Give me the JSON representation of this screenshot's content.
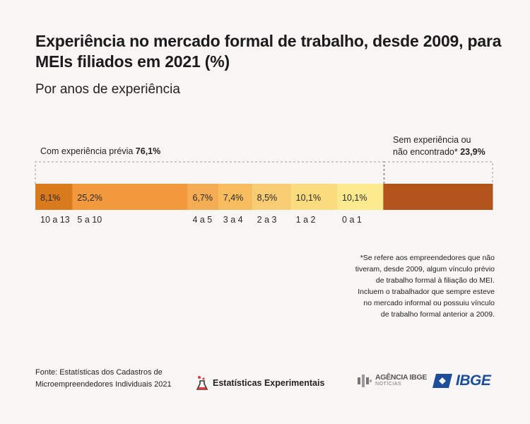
{
  "title": "Experiência no mercado formal de trabalho, desde 2009, para MEIs filiados em 2021 (%)",
  "subtitle": "Por anos de experiência",
  "header_left": {
    "label": "Com experiência prévia",
    "value": "76,1%"
  },
  "header_right": {
    "line1": "Sem experiência ou",
    "line2": "não encontrado*",
    "value": "23,9%"
  },
  "footnote": [
    "*Se refere aos empreendedores que não",
    "tiveram, desde 2009, algum vínculo prévio",
    "de trabalho formal à filiação do MEI.",
    "Incluem o trabalhador que sempre esteve",
    "no mercado informal ou possuiu vínculo",
    "de trabalho formal anterior a 2009."
  ],
  "source": {
    "line1": "Fonte: Estatísticas dos Cadastros de",
    "line2": "Microempreendedores Individuais 2021"
  },
  "logos": {
    "experimental": "Estatísticas Experimentais",
    "agencia_line1": "AGÊNCIA IBGE",
    "agencia_line2": "NOTÍCIAS",
    "ibge": "IBGE"
  },
  "colors": {
    "grad1": "#d97a1c",
    "grad2": "#f2993e",
    "grad3": "#f5ad55",
    "grad4": "#f6bc5e",
    "grad5": "#f8cc72",
    "grad6": "#fadb7e",
    "grad7": "#fbe98e",
    "none": "#b1531a"
  },
  "chart_data": {
    "type": "bar",
    "orientation": "horizontal-stacked",
    "unit": "%",
    "segments": [
      {
        "category": "10 a 13",
        "value": 8.1,
        "label": "8,1%",
        "color": "#d97a1c"
      },
      {
        "category": "5 a 10",
        "value": 25.2,
        "label": "25,2%",
        "color": "#f2993e"
      },
      {
        "category": "4 a 5",
        "value": 6.7,
        "label": "6,7%",
        "color": "#f5ad55"
      },
      {
        "category": "3 a 4",
        "value": 7.4,
        "label": "7,4%",
        "color": "#f6bc5e"
      },
      {
        "category": "2 a 3",
        "value": 8.5,
        "label": "8,5%",
        "color": "#f8cc72"
      },
      {
        "category": "1 a 2",
        "value": 10.1,
        "label": "10,1%",
        "color": "#fadb7e"
      },
      {
        "category": "0 a 1",
        "value": 10.1,
        "label": "10,1%",
        "color": "#fbe98e"
      },
      {
        "category": "",
        "value": 23.9,
        "label": "",
        "color": "#b1531a"
      }
    ]
  }
}
